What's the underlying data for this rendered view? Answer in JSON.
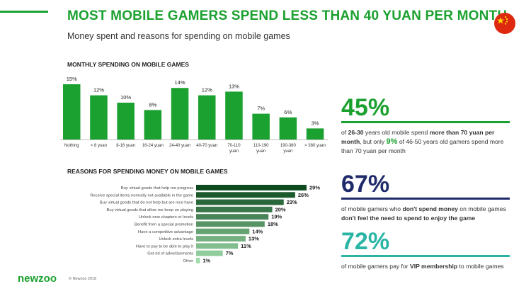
{
  "title": "MOST MOBILE GAMERS SPEND LESS THAN 40 YUAN PER MONTH",
  "subtitle": "Money spent and reasons for spending on mobile games",
  "footer": {
    "logo": "newzoo",
    "copyright": "© Newzoo 2018"
  },
  "colors": {
    "green": "#1ba12f",
    "navy": "#1f2a6b",
    "teal": "#2ab5a5",
    "bar_dark": "#0d4a1f",
    "bar_light": "#8fd49c"
  },
  "chart_data": [
    {
      "type": "bar",
      "title": "MONTHLY SPENDING ON MOBILE GAMES",
      "categories": [
        "Nothing",
        "< 8 yuan",
        "8-16 yuan",
        "16-24 yuan",
        "24-40 yuan",
        "40-70 yuan",
        "70-110 yuan",
        "110-190 yuan",
        "190-380 yuan",
        "> 380 yuan"
      ],
      "values": [
        15,
        12,
        10,
        8,
        14,
        12,
        13,
        7,
        6,
        3
      ],
      "value_labels": [
        "15%",
        "12%",
        "10%",
        "8%",
        "14%",
        "12%",
        "13%",
        "7%",
        "6%",
        "3%"
      ],
      "ylim": [
        0,
        15
      ]
    },
    {
      "type": "bar",
      "orientation": "horizontal",
      "title": "REASONS FOR SPENDING MONEY ON MOBILE GAMES",
      "categories": [
        "Buy virtual goods that help me progress",
        "Receive special items normally not available in the game",
        "Buy virtual goods that do not help but are nice have",
        "Buy virtual goods that allow me keep on playing",
        "Unlock new chapters or levels",
        "Benefit from a special promotion",
        "Have a competitive advantage",
        "Unlock extra levels",
        "Have to pay to be able to play it",
        "Get rid of advertisements",
        "Other"
      ],
      "values": [
        29,
        26,
        23,
        20,
        19,
        18,
        14,
        13,
        11,
        7,
        1
      ],
      "value_labels": [
        "29%",
        "26%",
        "23%",
        "20%",
        "19%",
        "18%",
        "14%",
        "13%",
        "11%",
        "7%",
        "1%"
      ],
      "xlim": [
        0,
        29
      ]
    }
  ],
  "stats": [
    {
      "value": "45%",
      "text_parts": [
        {
          "t": "of ",
          "b": false
        },
        {
          "t": "26-30",
          "b": true
        },
        {
          "t": " years old mobile spend ",
          "b": false
        },
        {
          "t": "more than 70 yuan per month",
          "b": true
        },
        {
          "t": ", but only ",
          "b": false
        },
        {
          "t": "9%",
          "b": true,
          "accent": true
        },
        {
          "t": " of 46-50 years old gamers spend more than 70 yuan per month",
          "b": false
        }
      ]
    },
    {
      "value": "67%",
      "text_parts": [
        {
          "t": "of mobile gamers who ",
          "b": false
        },
        {
          "t": "don't spend money",
          "b": true
        },
        {
          "t": " on mobile games ",
          "b": false
        },
        {
          "t": "don't feel the need to spend to enjoy the game",
          "b": true
        }
      ]
    },
    {
      "value": "72%",
      "text_parts": [
        {
          "t": "of mobile gamers pay for ",
          "b": false
        },
        {
          "t": "VIP membership",
          "b": true
        },
        {
          "t": " to mobile games",
          "b": false
        }
      ]
    }
  ]
}
